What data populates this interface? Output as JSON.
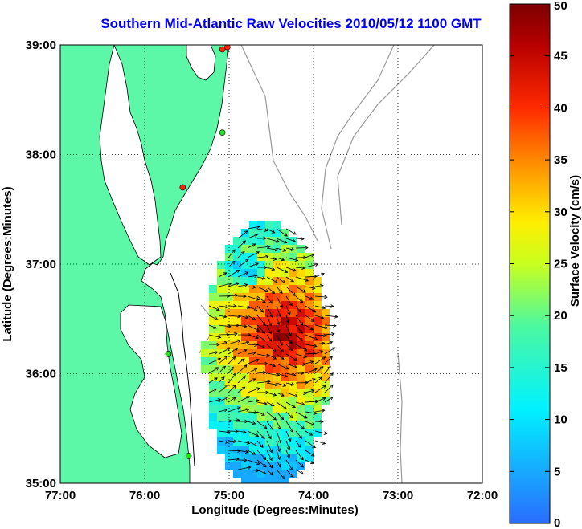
{
  "title": "Southern Mid-Atlantic Raw Velocities 2010/05/12 1100 GMT",
  "colors": {
    "title": "#0000ee",
    "land": "#5cf8a8",
    "water": "#ffffff",
    "grid": "#000000",
    "bathymetry": "#9a9a9a",
    "arrow": "#000000",
    "station_active": "#22dd22",
    "station_inactive": "#ff2200"
  },
  "map": {
    "xlabel": "Longitude (Degrees:Minutes)",
    "ylabel": "Latitude (Degrees:Minutes)",
    "lon_ticks": [
      "77:00",
      "76:00",
      "75:00",
      "74:00",
      "73:00",
      "72:00"
    ],
    "lat_ticks": [
      "39:00",
      "38:00",
      "37:00",
      "36:00",
      "35:00"
    ],
    "lon_range": [
      -77,
      -72
    ],
    "lat_range": [
      35,
      39
    ],
    "grid": "dotted"
  },
  "stations": [
    {
      "lon": -75.08,
      "lat": 38.96,
      "status": "inactive"
    },
    {
      "lon": -75.02,
      "lat": 38.98,
      "status": "inactive"
    },
    {
      "lon": -75.08,
      "lat": 38.2,
      "status": "active"
    },
    {
      "lon": -75.55,
      "lat": 37.7,
      "status": "inactive"
    },
    {
      "lon": -75.72,
      "lat": 36.18,
      "status": "active"
    },
    {
      "lon": -75.48,
      "lat": 35.25,
      "status": "active"
    }
  ],
  "colorbar": {
    "label": "Surface Velocity (cm/s)",
    "ticks": [
      "0",
      "5",
      "10",
      "15",
      "20",
      "25",
      "30",
      "35",
      "40",
      "45",
      "50"
    ],
    "min": 0,
    "max": 50
  }
}
